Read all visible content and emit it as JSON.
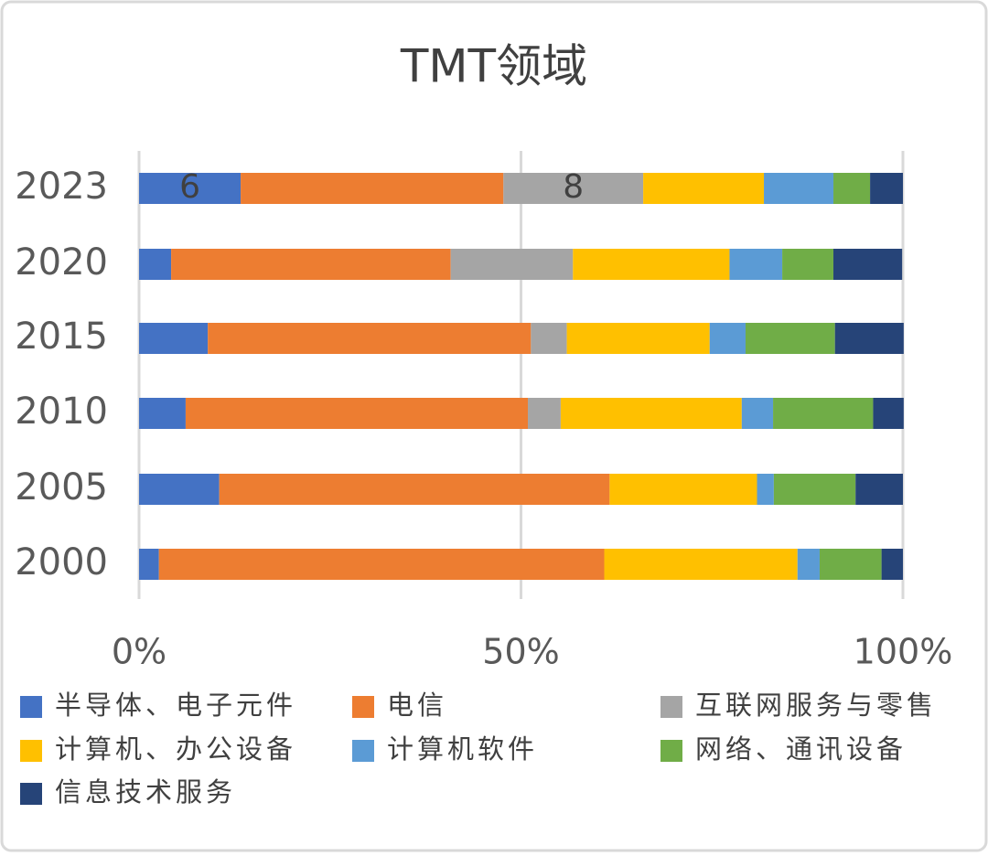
{
  "chart_data": {
    "type": "stacked_bar_horizontal",
    "title": "TMT领域",
    "categories": [
      "2023",
      "2020",
      "2015",
      "2010",
      "2005",
      "2000"
    ],
    "series": [
      {
        "name": "半导体、电子元件",
        "color": "#4472c4",
        "values": [
          13.3,
          4.2,
          9.0,
          6.1,
          10.5,
          2.6
        ]
      },
      {
        "name": "电信",
        "color": "#ed7d31",
        "values": [
          34.4,
          36.6,
          42.3,
          44.8,
          51.1,
          58.3
        ]
      },
      {
        "name": "互联网服务与零售",
        "color": "#a5a5a5",
        "values": [
          18.3,
          16.0,
          4.7,
          4.3,
          0,
          0
        ]
      },
      {
        "name": "计算机、办公设备",
        "color": "#ffc000",
        "values": [
          15.8,
          20.5,
          18.7,
          23.7,
          19.3,
          25.3
        ]
      },
      {
        "name": "计算机软件",
        "color": "#5b9bd5",
        "values": [
          9.1,
          6.9,
          4.7,
          4.1,
          2.2,
          2.9
        ]
      },
      {
        "name": "网络、通讯设备",
        "color": "#70ad47",
        "values": [
          4.8,
          6.7,
          11.7,
          13.1,
          10.7,
          8.1
        ]
      },
      {
        "name": "信息技术服务",
        "color": "#264478",
        "values": [
          4.3,
          9.0,
          9.0,
          4.0,
          6.2,
          2.8
        ]
      }
    ],
    "annotations": [
      {
        "text": "6",
        "series": 0,
        "category": 0
      },
      {
        "text": "8",
        "series": 2,
        "category": 0
      }
    ],
    "xlim": [
      0,
      100
    ],
    "xticks": [
      {
        "value": 0,
        "label": "0%"
      },
      {
        "value": 50,
        "label": "50%"
      },
      {
        "value": 100,
        "label": "100%"
      }
    ],
    "grid": true
  }
}
